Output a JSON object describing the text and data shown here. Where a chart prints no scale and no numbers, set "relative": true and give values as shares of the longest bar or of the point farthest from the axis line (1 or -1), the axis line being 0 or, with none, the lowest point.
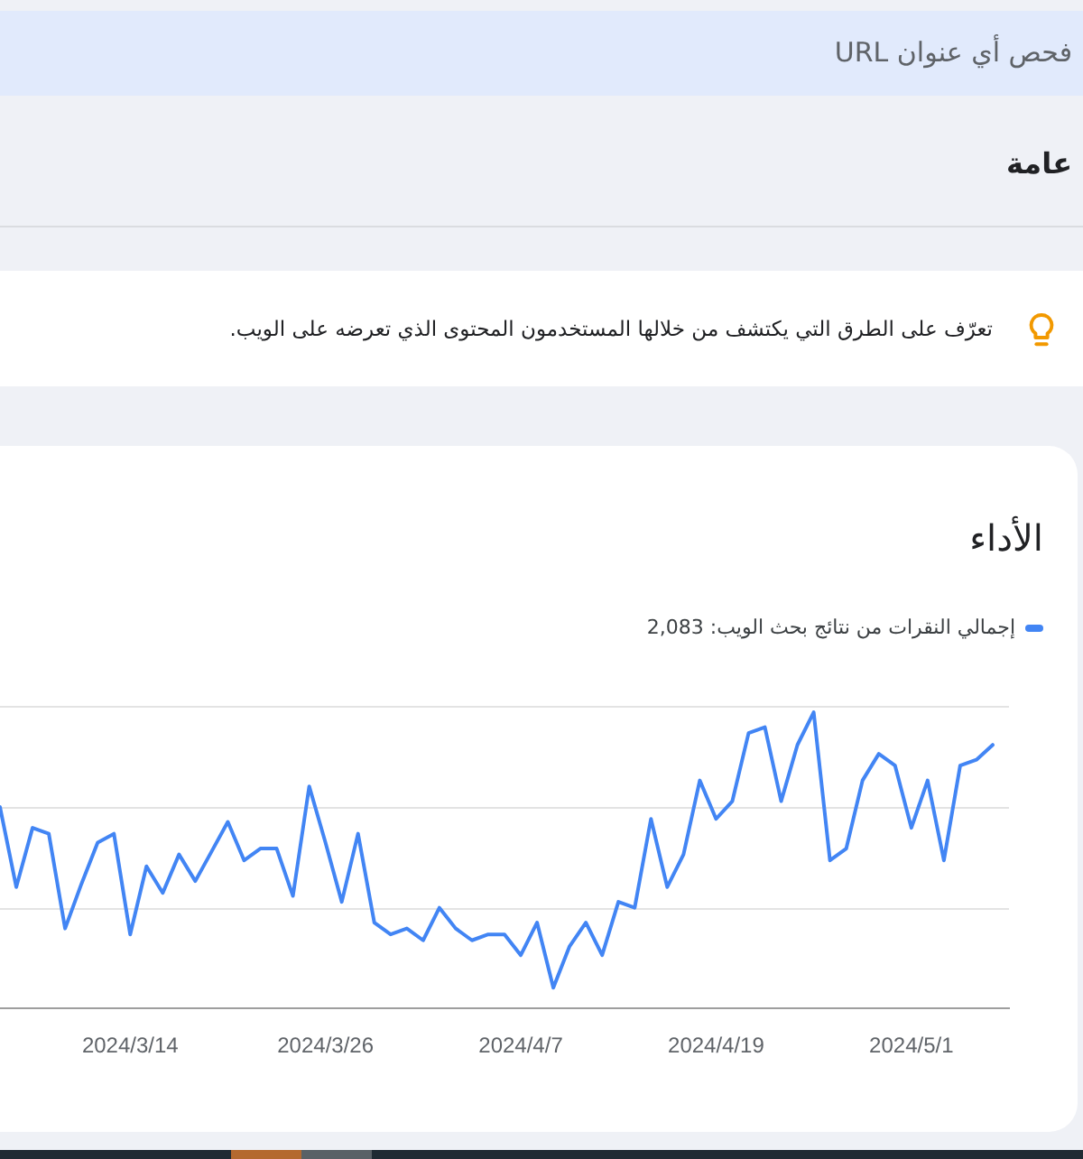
{
  "chart_data": {
    "type": "line",
    "title": "الأداء",
    "annotations": [
      "فحص أي عنوان URL",
      "عامة",
      "تعرّف على الطرق التي يكتشف من خلالها المستخدمون المحتوى الذي تعرضه على الويب."
    ],
    "x": [
      "2024-03-06",
      "2024-03-07",
      "2024-03-08",
      "2024-03-09",
      "2024-03-10",
      "2024-03-11",
      "2024-03-12",
      "2024-03-13",
      "2024-03-14",
      "2024-03-15",
      "2024-03-16",
      "2024-03-17",
      "2024-03-18",
      "2024-03-19",
      "2024-03-20",
      "2024-03-21",
      "2024-03-22",
      "2024-03-23",
      "2024-03-24",
      "2024-03-25",
      "2024-03-26",
      "2024-03-27",
      "2024-03-28",
      "2024-03-29",
      "2024-03-30",
      "2024-03-31",
      "2024-04-01",
      "2024-04-02",
      "2024-04-03",
      "2024-04-04",
      "2024-04-05",
      "2024-04-06",
      "2024-04-07",
      "2024-04-08",
      "2024-04-09",
      "2024-04-10",
      "2024-04-11",
      "2024-04-12",
      "2024-04-13",
      "2024-04-14",
      "2024-04-15",
      "2024-04-16",
      "2024-04-17",
      "2024-04-18",
      "2024-04-19",
      "2024-04-20",
      "2024-04-21",
      "2024-04-22",
      "2024-04-23",
      "2024-04-24",
      "2024-04-25",
      "2024-04-26",
      "2024-04-27",
      "2024-04-28",
      "2024-04-29",
      "2024-04-30",
      "2024-05-01",
      "2024-05-02",
      "2024-05-03",
      "2024-05-04",
      "2024-05-05",
      "2024-05-06"
    ],
    "series": [
      {
        "name": "إجمالي النقرات من نتائج بحث الويب: 2,083",
        "color": "#4285f4",
        "values": [
          0.68,
          0.41,
          0.61,
          0.59,
          0.27,
          0.42,
          0.56,
          0.59,
          0.25,
          0.48,
          0.39,
          0.52,
          0.43,
          0.53,
          0.63,
          0.5,
          0.54,
          0.54,
          0.38,
          0.75,
          0.56,
          0.36,
          0.59,
          0.29,
          0.25,
          0.27,
          0.23,
          0.34,
          0.27,
          0.23,
          0.25,
          0.25,
          0.18,
          0.29,
          0.07,
          0.21,
          0.29,
          0.18,
          0.36,
          0.34,
          0.64,
          0.41,
          0.52,
          0.77,
          0.64,
          0.7,
          0.93,
          0.95,
          0.7,
          0.89,
          1,
          0.5,
          0.54,
          0.77,
          0.86,
          0.82,
          0.61,
          0.77,
          0.5,
          0.82,
          0.84,
          0.89
        ]
      }
    ],
    "relative": true,
    "xlim": [
      "2024-03-06",
      "2024-05-07"
    ],
    "xticks": [
      {
        "value": "2024-03-14",
        "label": "2024/3/14"
      },
      {
        "value": "2024-03-26",
        "label": "2024/3/26"
      },
      {
        "value": "2024-04-07",
        "label": "2024/4/7"
      },
      {
        "value": "2024-04-19",
        "label": "2024/4/19"
      },
      {
        "value": "2024-05-01",
        "label": "2024/5/1"
      }
    ],
    "ref_lines": [
      {
        "axis": "y",
        "value": 0.34,
        "color": "#e3e3e3"
      },
      {
        "axis": "y",
        "value": 0.68,
        "color": "#e3e3e3"
      },
      {
        "axis": "y",
        "value": 1.02,
        "color": "#e3e3e3"
      }
    ],
    "legend": "top right",
    "tick_labels": "x",
    "marker": "none",
    "line_style": "solid"
  }
}
